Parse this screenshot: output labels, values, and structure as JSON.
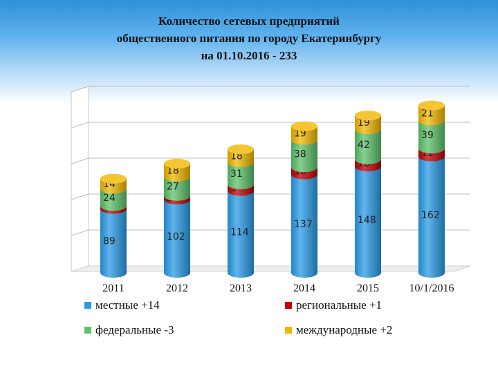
{
  "title": {
    "line1": "Количество сетевых предприятий",
    "line2": "общественного питания по городу Екатеринбургу",
    "line3": "на 01.10.2016  -  233"
  },
  "colors": {
    "local": "#2a9be6",
    "regional": "#c00000",
    "federal": "#5cc26a",
    "international": "#f2b800"
  },
  "legend": [
    {
      "key": "local",
      "label": "местные +14"
    },
    {
      "key": "regional",
      "label": "региональные +1"
    },
    {
      "key": "federal",
      "label": "федеральные -3"
    },
    {
      "key": "international",
      "label": "международные +2"
    }
  ],
  "chart_data": {
    "type": "bar",
    "stacked": true,
    "style": "3d-cylinder",
    "categories": [
      "2011",
      "2012",
      "2013",
      "2014",
      "2015",
      "10/1/2016"
    ],
    "series": [
      {
        "key": "local",
        "name": "местные +14",
        "values": [
          89,
          102,
          114,
          137,
          148,
          162
        ]
      },
      {
        "key": "regional",
        "name": "региональные +1",
        "values": [
          4,
          5,
          9,
          10,
          10,
          11
        ]
      },
      {
        "key": "federal",
        "name": "федеральные -3",
        "values": [
          24,
          27,
          31,
          38,
          42,
          39
        ]
      },
      {
        "key": "international",
        "name": "международные +2",
        "values": [
          14,
          18,
          18,
          19,
          19,
          21
        ]
      }
    ],
    "ylim": [
      0,
      250
    ],
    "grid": true,
    "legend_position": "bottom"
  }
}
